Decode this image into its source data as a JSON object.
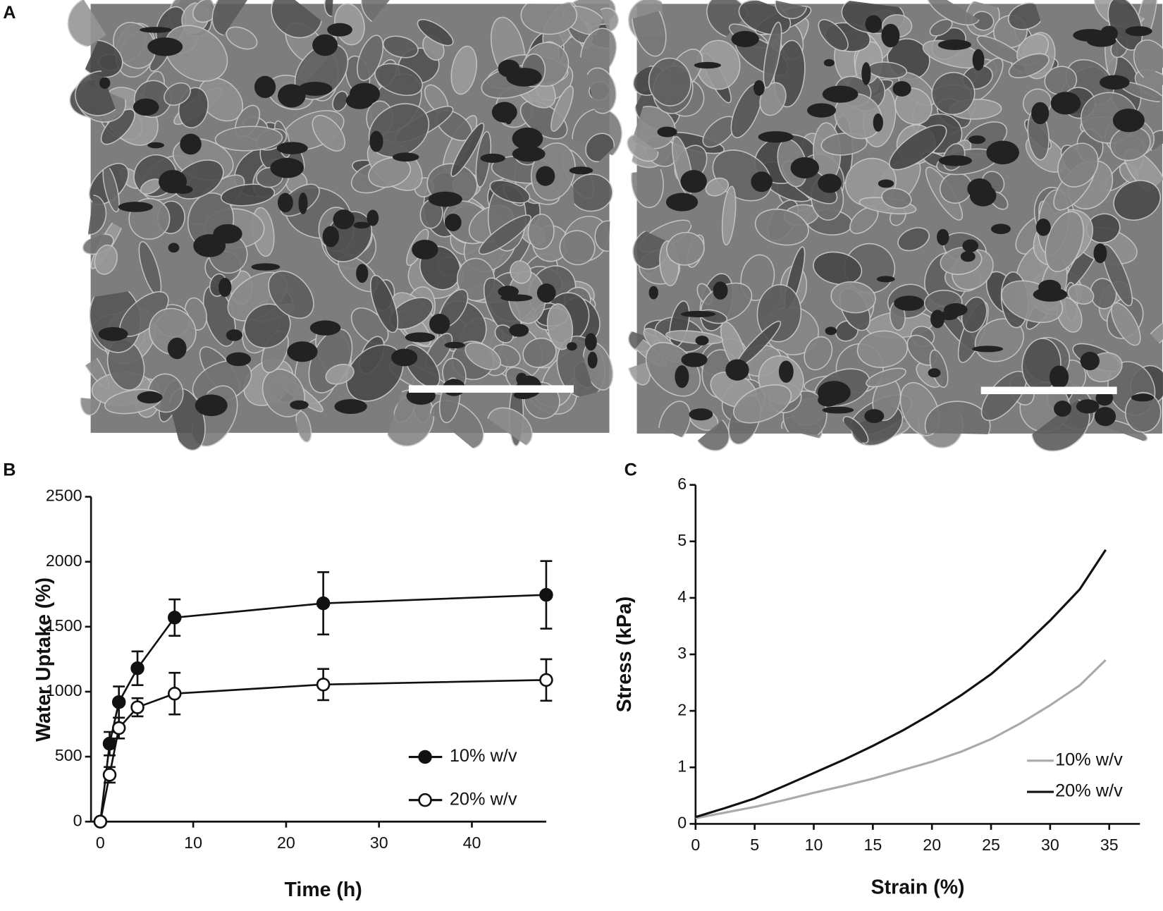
{
  "panel_a": {
    "label": "A"
  },
  "chart_data": [
    {
      "type": "line",
      "panel_label": "B",
      "x_label": "Time (h)",
      "y_label": "Water Uptake (%)",
      "x": [
        0,
        1,
        2,
        4,
        8,
        24,
        48
      ],
      "series": [
        {
          "name": "10% w/v",
          "color": "#111111",
          "marker": "filled",
          "values": [
            0,
            600,
            920,
            1180,
            1570,
            1680,
            1745
          ],
          "errors": [
            0,
            90,
            120,
            130,
            140,
            240,
            260
          ]
        },
        {
          "name": "20% w/v",
          "color": "#111111",
          "marker": "open",
          "values": [
            0,
            360,
            720,
            880,
            985,
            1055,
            1090
          ],
          "errors": [
            0,
            60,
            80,
            70,
            160,
            120,
            160
          ]
        }
      ],
      "xlim": [
        -1,
        48
      ],
      "ylim": [
        0,
        2500
      ],
      "xticks": [
        0,
        10,
        20,
        30,
        40
      ],
      "yticks": [
        0,
        500,
        1000,
        1500,
        2000,
        2500
      ]
    },
    {
      "type": "line",
      "panel_label": "C",
      "x_label": "Strain (%)",
      "y_label": "Stress (kPa)",
      "x": [
        0,
        2.5,
        5,
        7.5,
        10,
        12.5,
        15,
        17.5,
        20,
        22.5,
        25,
        27.5,
        30,
        32.5,
        34.7
      ],
      "series": [
        {
          "name": "10% w/v",
          "color": "#aaaaaa",
          "values": [
            0.1,
            0.2,
            0.3,
            0.42,
            0.55,
            0.67,
            0.8,
            0.95,
            1.1,
            1.28,
            1.5,
            1.78,
            2.1,
            2.45,
            2.9
          ]
        },
        {
          "name": "20% w/v",
          "color": "#111111",
          "values": [
            0.12,
            0.28,
            0.45,
            0.67,
            0.9,
            1.13,
            1.38,
            1.65,
            1.95,
            2.28,
            2.65,
            3.1,
            3.6,
            4.15,
            4.85
          ]
        }
      ],
      "xlim": [
        0,
        37.6
      ],
      "ylim": [
        0,
        6
      ],
      "xticks": [
        0,
        5,
        10,
        15,
        20,
        25,
        30,
        35
      ],
      "yticks": [
        0,
        1,
        2,
        3,
        4,
        5,
        6
      ]
    }
  ]
}
